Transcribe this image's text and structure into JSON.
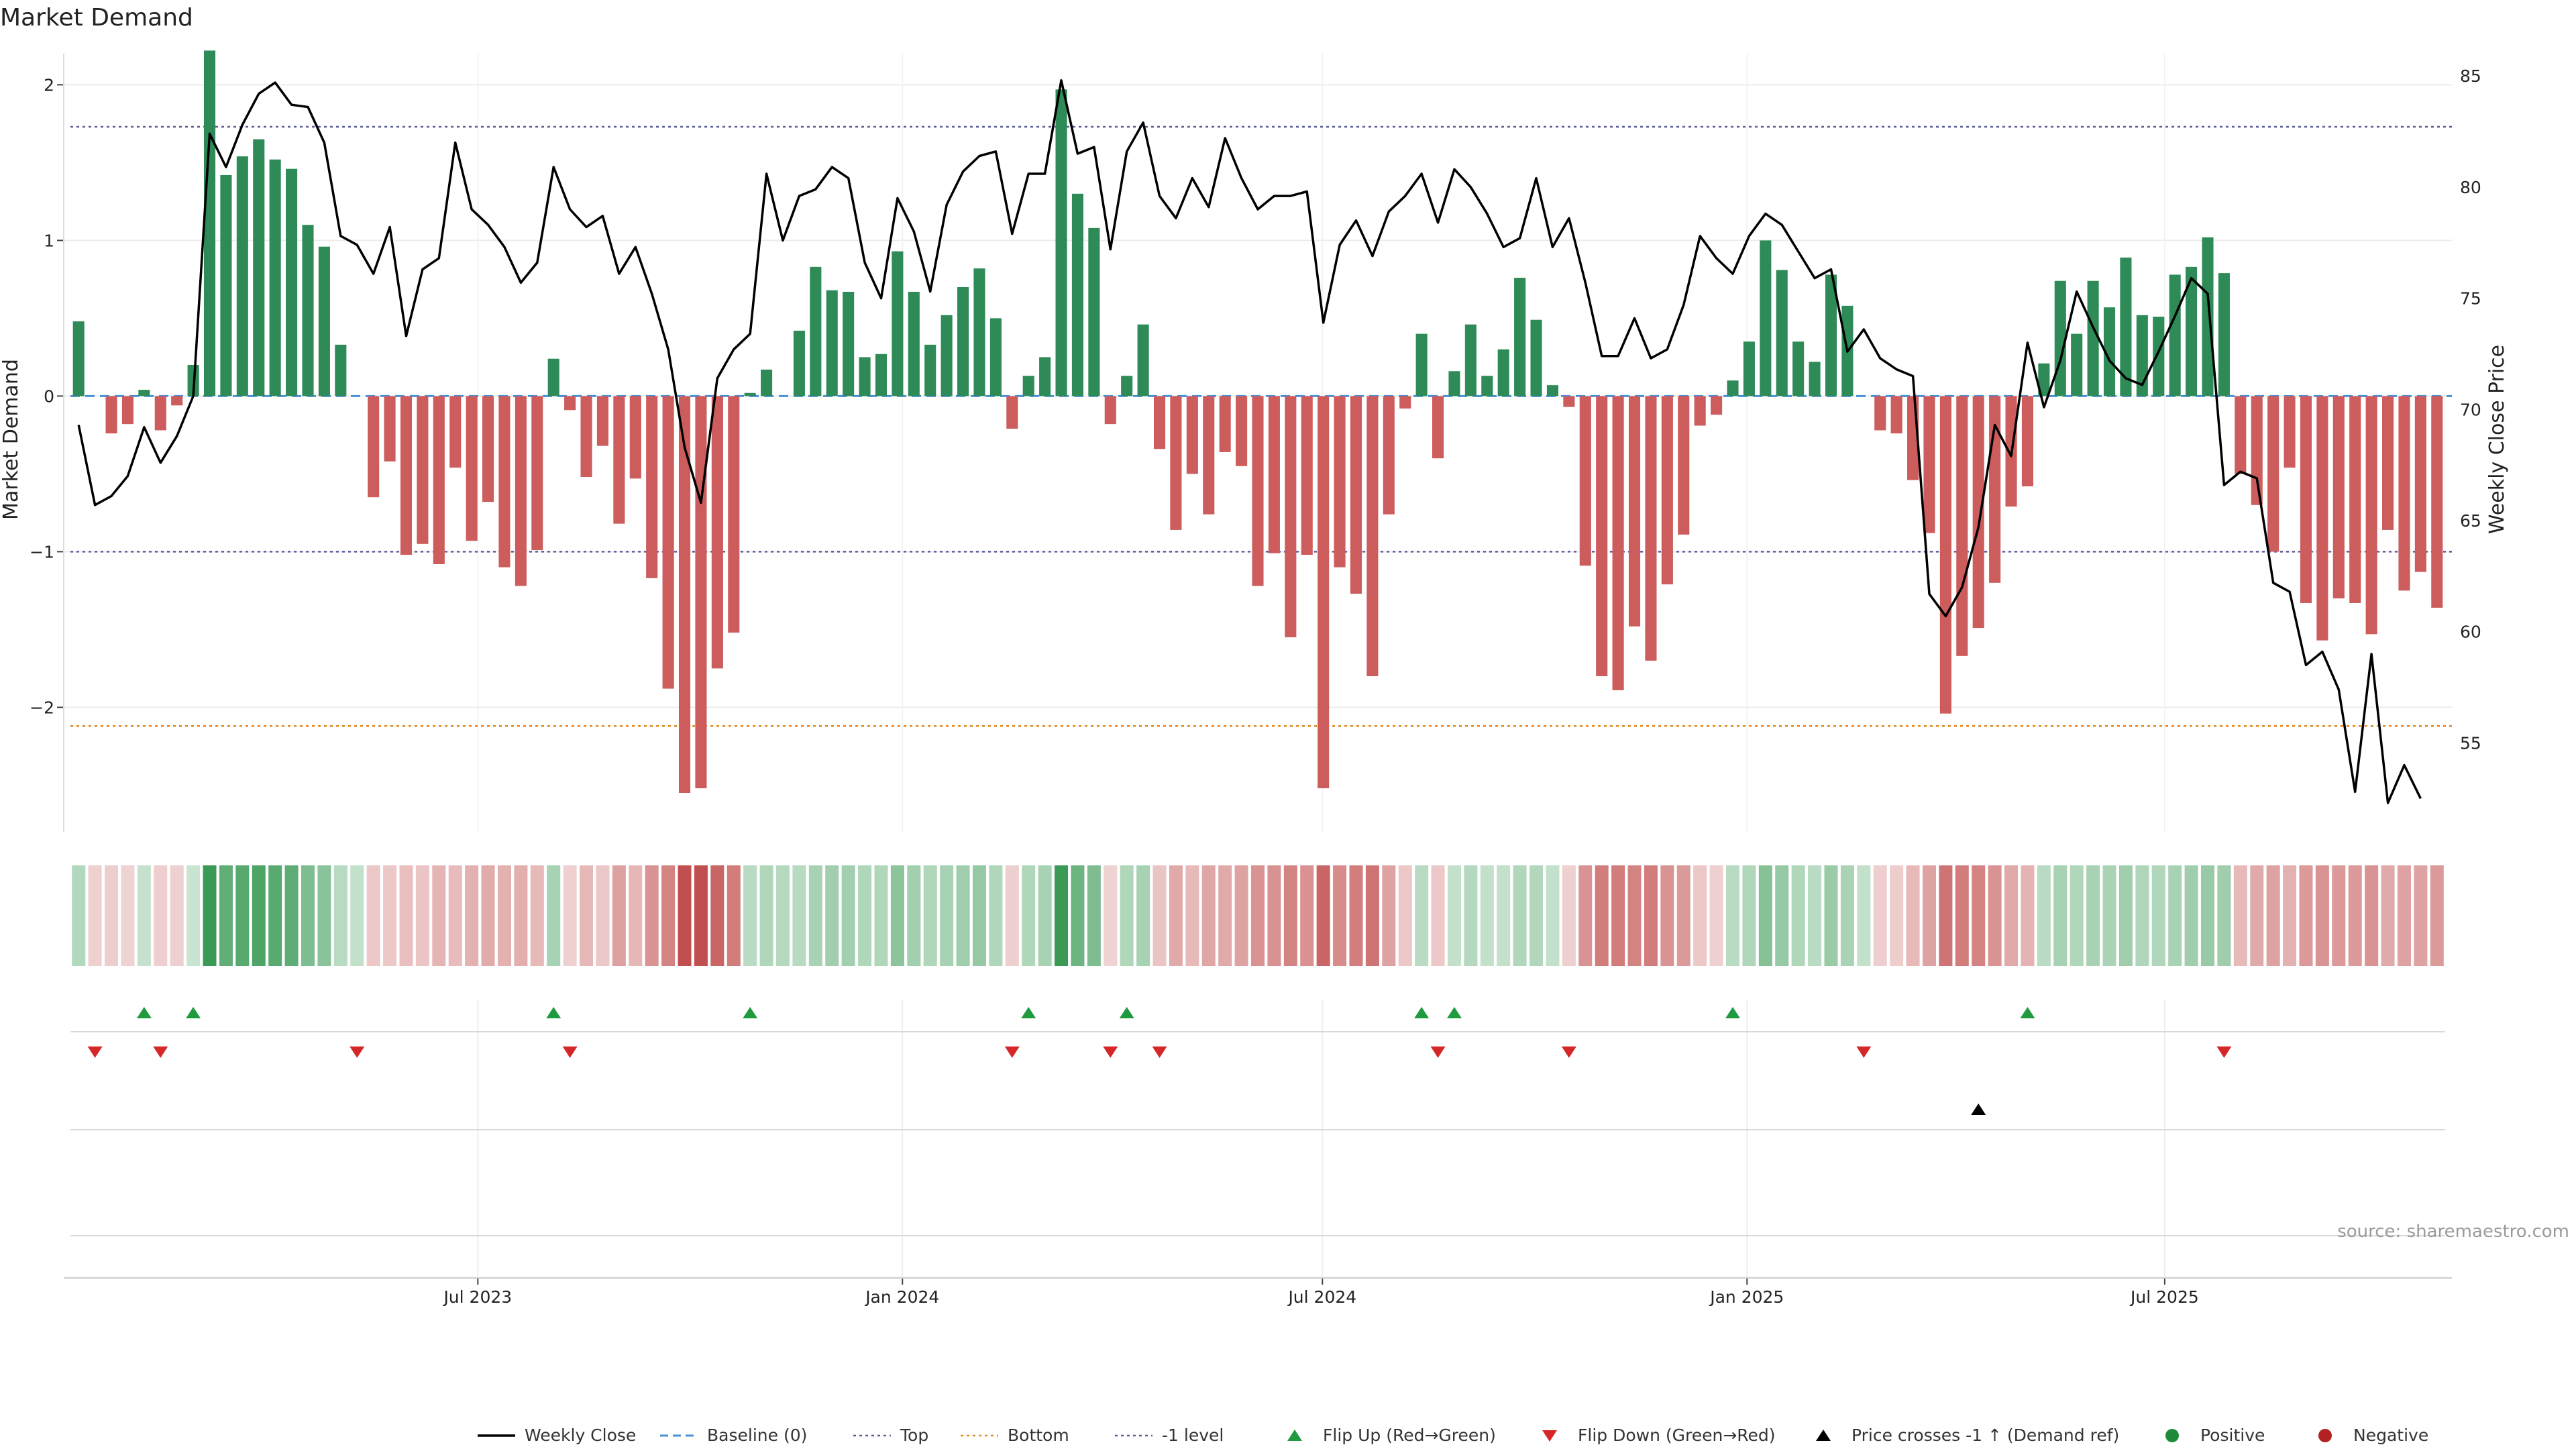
{
  "title": "Market Demand",
  "source": "source: sharemaestro.com",
  "colors": {
    "positive": "#2e8b57",
    "negative": "#cd5c5c",
    "line": "#000000",
    "top": "#5a5a9e",
    "bottom": "#e08a1e",
    "baseline": "#4a90d9",
    "flip_up": "#1f9a3e",
    "flip_down": "#d62728",
    "cross": "#000000",
    "legend_positive": "#1f8a3a",
    "legend_negative": "#b22222"
  },
  "chart_data": {
    "type": "bar+line",
    "title": "Market Demand",
    "ylabel_left": "Market Demand",
    "ylabel_right": "Weekly Close Price",
    "ylim_left": [
      -2.8,
      2.2
    ],
    "yticks_left": [
      {
        "value": 2,
        "label": "2"
      },
      {
        "value": 1,
        "label": "1"
      },
      {
        "value": 0,
        "label": "0"
      },
      {
        "value": -1,
        "label": "−1"
      },
      {
        "value": -2,
        "label": "−2"
      }
    ],
    "ylim_right": [
      51,
      86
    ],
    "yticks_right": [
      {
        "value": 85,
        "label": "85"
      },
      {
        "value": 80,
        "label": "80"
      },
      {
        "value": 75,
        "label": "75"
      },
      {
        "value": 70,
        "label": "70"
      },
      {
        "value": 65,
        "label": "65"
      },
      {
        "value": 60,
        "label": "60"
      },
      {
        "value": 55,
        "label": "55"
      }
    ],
    "x_start": "2023-01-09",
    "x_end": "2025-10-27",
    "xticks": [
      {
        "date": "2023-07-01",
        "label": "Jul 2023"
      },
      {
        "date": "2024-01-01",
        "label": "Jan 2024"
      },
      {
        "date": "2024-07-01",
        "label": "Jul 2024"
      },
      {
        "date": "2025-01-01",
        "label": "Jan 2025"
      },
      {
        "date": "2025-07-01",
        "label": "Jul 2025"
      }
    ],
    "reference_lines": {
      "top": 1.73,
      "bottom": -2.12,
      "minus_one": -1,
      "baseline": 0
    },
    "demand": [
      0.48,
      0.0,
      -0.24,
      -0.18,
      0.04,
      -0.22,
      -0.06,
      0.2,
      2.22,
      1.42,
      1.54,
      1.65,
      1.52,
      1.46,
      1.1,
      0.96,
      0.33,
      0.0,
      -0.65,
      -0.42,
      -1.02,
      -0.95,
      -1.08,
      -0.46,
      -0.93,
      -0.68,
      -1.1,
      -1.22,
      -0.99,
      0.24,
      -0.09,
      -0.52,
      -0.32,
      -0.82,
      -0.53,
      -1.17,
      -1.88,
      -2.55,
      -2.52,
      -1.75,
      -1.52,
      0.02,
      0.17,
      0.0,
      0.42,
      0.83,
      0.68,
      0.67,
      0.25,
      0.27,
      0.93,
      0.67,
      0.33,
      0.52,
      0.7,
      0.82,
      0.5,
      -0.21,
      0.13,
      0.25,
      1.97,
      1.3,
      1.08,
      -0.18,
      0.13,
      0.46,
      -0.34,
      -0.86,
      -0.5,
      -0.76,
      -0.36,
      -0.45,
      -1.22,
      -1.01,
      -1.55,
      -1.02,
      -2.52,
      -1.1,
      -1.27,
      -1.8,
      -0.76,
      -0.08,
      0.4,
      -0.4,
      0.16,
      0.46,
      0.13,
      0.3,
      0.76,
      0.49,
      0.07,
      -0.07,
      -1.09,
      -1.8,
      -1.89,
      -1.48,
      -1.7,
      -1.21,
      -0.89,
      -0.19,
      -0.12,
      0.1,
      0.35,
      1.0,
      0.81,
      0.35,
      0.22,
      0.78,
      0.58,
      0.0,
      -0.22,
      -0.24,
      -0.54,
      -0.88,
      -2.04,
      -1.67,
      -1.49,
      -1.2,
      -0.71,
      -0.58,
      0.21,
      0.74,
      0.4,
      0.74,
      0.57,
      0.89,
      0.52,
      0.51,
      0.78,
      0.83,
      1.02,
      0.79,
      -0.5,
      -0.7,
      -1.0,
      -0.46,
      -1.33,
      -1.57,
      -1.3,
      -1.33,
      -1.53,
      -0.86,
      -1.25,
      -1.13,
      -1.36
    ],
    "weekly_close": [
      69.3,
      65.7,
      66.1,
      67.0,
      69.2,
      67.6,
      68.8,
      70.6,
      82.4,
      80.9,
      82.8,
      84.2,
      84.7,
      83.7,
      83.6,
      82.0,
      77.8,
      77.4,
      76.1,
      78.2,
      73.3,
      76.3,
      76.8,
      82.0,
      79.0,
      78.3,
      77.3,
      75.7,
      76.6,
      80.9,
      79.0,
      78.2,
      78.7,
      76.1,
      77.3,
      75.2,
      72.7,
      68.3,
      65.8,
      71.4,
      72.7,
      73.4,
      80.6,
      77.6,
      79.6,
      79.9,
      80.9,
      80.4,
      76.6,
      75.0,
      79.5,
      78.0,
      75.3,
      79.2,
      80.7,
      81.4,
      81.6,
      77.9,
      80.6,
      80.6,
      84.8,
      81.5,
      81.8,
      77.2,
      81.6,
      82.9,
      79.6,
      78.6,
      80.4,
      79.1,
      82.2,
      80.4,
      79.0,
      79.6,
      79.6,
      79.8,
      73.9,
      77.4,
      78.5,
      76.9,
      78.9,
      79.6,
      80.6,
      78.4,
      80.8,
      80.0,
      78.8,
      77.3,
      77.7,
      80.4,
      77.3,
      78.6,
      75.7,
      72.4,
      72.4,
      74.1,
      72.3,
      72.7,
      74.7,
      77.8,
      76.8,
      76.1,
      77.8,
      78.8,
      78.3,
      77.1,
      75.9,
      76.3,
      72.6,
      73.6,
      72.3,
      71.8,
      71.5,
      61.7,
      60.7,
      62.0,
      64.7,
      69.3,
      67.9,
      73.0,
      70.1,
      72.2,
      75.3,
      73.7,
      72.2,
      71.4,
      71.1,
      72.6,
      74.2,
      75.9,
      75.2,
      66.6,
      67.2,
      66.9,
      62.2,
      61.8,
      58.5,
      59.1,
      57.4,
      52.8,
      59.0,
      52.3,
      54.0,
      52.5
    ],
    "color_strip": [
      0.48,
      -0.2,
      -0.24,
      -0.18,
      0.25,
      -0.22,
      -0.2,
      0.2,
      2.0,
      1.42,
      1.54,
      1.65,
      1.52,
      1.46,
      1.1,
      0.96,
      0.4,
      0.3,
      -0.3,
      -0.3,
      -0.42,
      -0.35,
      -0.55,
      -0.46,
      -0.6,
      -0.68,
      -0.6,
      -0.65,
      -0.5,
      0.6,
      -0.2,
      -0.52,
      -0.32,
      -0.82,
      -0.53,
      -1.0,
      -1.2,
      -2.0,
      -2.2,
      -1.6,
      -1.3,
      0.4,
      0.5,
      0.45,
      0.42,
      0.6,
      0.68,
      0.67,
      0.5,
      0.5,
      0.93,
      0.67,
      0.5,
      0.6,
      0.7,
      0.82,
      0.5,
      -0.21,
      0.5,
      0.6,
      1.97,
      1.3,
      1.08,
      -0.18,
      0.5,
      0.6,
      -0.34,
      -0.7,
      -0.5,
      -0.76,
      -0.7,
      -0.8,
      -1.0,
      -1.01,
      -1.2,
      -1.02,
      -1.6,
      -1.1,
      -1.27,
      -1.4,
      -0.8,
      -0.3,
      0.4,
      -0.3,
      0.3,
      0.46,
      0.3,
      0.3,
      0.5,
      0.49,
      0.3,
      -0.2,
      -1.0,
      -1.3,
      -1.3,
      -1.2,
      -1.3,
      -1.0,
      -0.89,
      -0.3,
      -0.2,
      0.4,
      0.5,
      1.0,
      0.81,
      0.5,
      0.4,
      0.78,
      0.58,
      0.3,
      -0.22,
      -0.24,
      -0.5,
      -0.8,
      -1.4,
      -1.3,
      -1.2,
      -1.0,
      -0.71,
      -0.58,
      0.4,
      0.6,
      0.5,
      0.6,
      0.57,
      0.7,
      0.52,
      0.51,
      0.6,
      0.7,
      0.8,
      0.7,
      -0.5,
      -0.7,
      -0.8,
      -0.6,
      -0.9,
      -1.0,
      -0.9,
      -0.9,
      -1.0,
      -0.7,
      -0.8,
      -0.8,
      -0.9
    ],
    "flip_up_weeks": [
      4,
      7,
      29,
      41,
      58,
      64,
      82,
      84,
      101,
      119
    ],
    "flip_down_weeks": [
      1,
      5,
      17,
      30,
      57,
      63,
      66,
      83,
      91,
      109,
      131
    ],
    "price_cross_weeks": [
      116
    ],
    "legend": [
      {
        "key": "line",
        "label": "Weekly Close"
      },
      {
        "key": "baseline",
        "label": "Baseline (0)"
      },
      {
        "key": "top",
        "label": "Top"
      },
      {
        "key": "bottom",
        "label": "Bottom"
      },
      {
        "key": "minus_one",
        "label": "-1 level"
      },
      {
        "key": "flip_up",
        "label": "Flip Up (Red→Green)"
      },
      {
        "key": "flip_down",
        "label": "Flip Down (Green→Red)"
      },
      {
        "key": "cross",
        "label": "Price crosses -1 ↑ (Demand ref)"
      },
      {
        "key": "positive",
        "label": "Positive"
      },
      {
        "key": "negative",
        "label": "Negative"
      }
    ]
  }
}
